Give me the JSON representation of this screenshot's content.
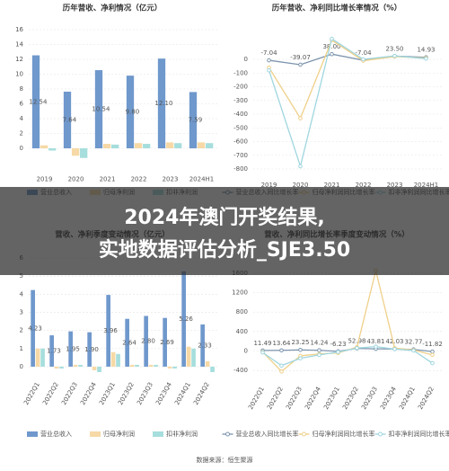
{
  "chart_data": [
    {
      "type": "bar",
      "title": "历年营收、净利情况（亿元）",
      "categories": [
        "2019",
        "2020",
        "2021",
        "2022",
        "2023",
        "2024H1"
      ],
      "series": [
        {
          "name": "营业总收入",
          "color": "#6f98cc",
          "values": [
            12.54,
            7.64,
            10.54,
            9.8,
            12.1,
            7.59
          ],
          "value_labels": [
            "12.54",
            "7.64",
            "10.54",
            "9.80",
            "12.10",
            "7.59"
          ]
        },
        {
          "name": "归母净利润",
          "color": "#f6d9a6",
          "values": [
            0.4,
            -1.0,
            0.6,
            0.7,
            0.8,
            0.8
          ]
        },
        {
          "name": "扣非净利润",
          "color": "#a6dedd",
          "values": [
            -0.3,
            -1.3,
            0.5,
            0.6,
            0.7,
            0.7
          ]
        }
      ],
      "ylim": [
        -2,
        16
      ],
      "yticks": [
        0,
        2,
        4,
        6,
        8,
        10,
        12,
        14,
        16
      ],
      "grid": true
    },
    {
      "type": "line",
      "title": "历年营收、净利同比增长率情况（%）",
      "categories": [
        "2019",
        "2020",
        "2021",
        "2022",
        "2023",
        "2024H1"
      ],
      "series": [
        {
          "name": "营业总收入同比增长率",
          "color": "#7d95ae",
          "values": [
            -7.04,
            -39.07,
            38.0,
            -7.04,
            23.5,
            14.93
          ],
          "value_labels": [
            "-7.04",
            "-39.07",
            "38.00",
            "-7.04",
            "23.50",
            "14.93"
          ]
        },
        {
          "name": "归母净利润同比增长率",
          "color": "#efd08a",
          "values": [
            -60,
            -430,
            140,
            -10,
            20,
            10
          ]
        },
        {
          "name": "扣非净利润同比增长率",
          "color": "#9fd6df",
          "values": [
            -80,
            -780,
            150,
            0,
            25,
            5
          ]
        }
      ],
      "ylim": [
        -800,
        200
      ],
      "yticks": [
        0,
        -100,
        -200,
        -300,
        -400,
        -500,
        -600,
        -700,
        -800
      ],
      "grid": true
    },
    {
      "type": "bar",
      "title": "营收、净利季度变动情况（亿元）",
      "categories": [
        "2022Q1",
        "2022Q2",
        "2022Q3",
        "2022Q4",
        "2023Q1",
        "2023Q2",
        "2023Q3",
        "2023Q4",
        "2024Q1",
        "2024Q2"
      ],
      "series": [
        {
          "name": "营业总收入",
          "color": "#6f98cc",
          "values": [
            4.23,
            1.73,
            1.95,
            1.9,
            3.96,
            2.64,
            2.8,
            2.69,
            5.26,
            2.33
          ],
          "value_labels": [
            "4.23",
            "1.73",
            "1.95",
            "1.90",
            "3.96",
            "2.64",
            "2.80",
            "2.69",
            "5.26",
            "2.33"
          ]
        },
        {
          "name": "归母净利润",
          "color": "#f6d9a6",
          "values": [
            1.0,
            -0.1,
            0.1,
            -0.2,
            0.8,
            0.1,
            0.1,
            -0.1,
            1.1,
            0.3
          ]
        },
        {
          "name": "扣非净利润",
          "color": "#a6dedd",
          "values": [
            1.0,
            -0.1,
            0.1,
            -0.3,
            0.7,
            0.1,
            0.1,
            -0.1,
            1.0,
            -0.3
          ]
        }
      ],
      "ylim": [
        -0.5,
        6
      ],
      "yticks": [
        0,
        1,
        2,
        3,
        4,
        5,
        6
      ],
      "grid": true
    },
    {
      "type": "line",
      "title": "营收、净利同比增长率季度变动情况（%）",
      "categories": [
        "2022Q1",
        "2022Q2",
        "2022Q3",
        "2022Q4",
        "2023Q1",
        "2023Q2",
        "2023Q3",
        "2023Q4",
        "2024Q1",
        "2024Q2"
      ],
      "series": [
        {
          "name": "营业总收入同比增长率",
          "color": "#7d95ae",
          "values": [
            11.49,
            13.64,
            23.25,
            14.24,
            -6.23,
            52.98,
            43.81,
            42.03,
            32.77,
            -11.82
          ],
          "value_labels": [
            "11.49",
            "13.64",
            "23.25",
            "14.24",
            "-6.23",
            "52.98",
            "43.81",
            "42.03",
            "32.77",
            "-11.82"
          ]
        },
        {
          "name": "归母净利润同比增长率",
          "color": "#efd08a",
          "values": [
            -20,
            -420,
            -100,
            -60,
            -40,
            80,
            1650,
            60,
            20,
            -80
          ]
        },
        {
          "name": "扣非净利润同比增长率",
          "color": "#9fd6df",
          "values": [
            -30,
            -300,
            -150,
            -80,
            -20,
            60,
            90,
            40,
            10,
            -250
          ]
        }
      ],
      "ylim": [
        -600,
        1800
      ],
      "yticks": [
        -400,
        0,
        400,
        800,
        1200,
        1600
      ],
      "grid": true
    }
  ],
  "overlay_title": "2024年澳门开奖结果,实地数据评估分析_SJE3.50",
  "source": "数据来源：恒生聚源"
}
